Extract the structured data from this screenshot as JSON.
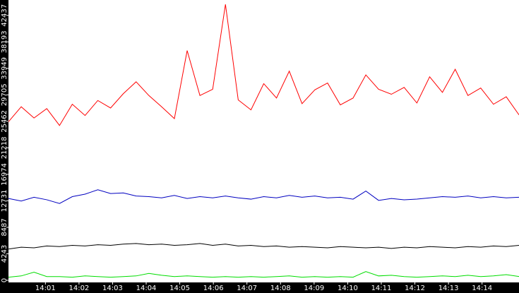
{
  "chart_data": {
    "type": "line",
    "x": [
      -0.1,
      0.28,
      0.66,
      1.04,
      1.42,
      1.8,
      2.18,
      2.56,
      2.94,
      3.32,
      3.7,
      4.08,
      4.46,
      4.84,
      5.22,
      5.6,
      5.98,
      6.36,
      6.74,
      7.12,
      7.5,
      7.88,
      8.26,
      8.64,
      9.02,
      9.4,
      9.78,
      10.16,
      10.54,
      10.92,
      11.3,
      11.68,
      12.06,
      12.44,
      12.82,
      13.2,
      13.58,
      13.96,
      14.34,
      14.72,
      15.1
    ],
    "series": [
      {
        "color": "#ff0000",
        "values": [
          25400,
          27800,
          26000,
          27500,
          24800,
          28200,
          26400,
          28800,
          27600,
          29900,
          31800,
          29600,
          27800,
          25900,
          36800,
          29600,
          30600,
          44200,
          28900,
          27300,
          31500,
          29200,
          33500,
          28300,
          30500,
          31600,
          28100,
          29200,
          32900,
          30600,
          29800,
          30900,
          28400,
          32600,
          30100,
          33800,
          29600,
          30800,
          28200,
          29400,
          26500
        ]
      },
      {
        "color": "#0000c0",
        "values": [
          13100,
          12700,
          13300,
          12900,
          12300,
          13400,
          13800,
          14500,
          13900,
          14000,
          13500,
          13400,
          13200,
          13600,
          13100,
          13400,
          13200,
          13500,
          13200,
          13000,
          13400,
          13200,
          13600,
          13300,
          13500,
          13200,
          13300,
          13000,
          14300,
          12800,
          13100,
          12900,
          13000,
          13200,
          13400,
          13300,
          13500,
          13200,
          13400,
          13200,
          13300
        ]
      },
      {
        "color": "#000000",
        "values": [
          5000,
          5300,
          5200,
          5500,
          5400,
          5600,
          5500,
          5700,
          5600,
          5800,
          5900,
          5700,
          5800,
          5600,
          5700,
          5900,
          5600,
          5800,
          5500,
          5600,
          5400,
          5500,
          5300,
          5400,
          5300,
          5200,
          5400,
          5300,
          5200,
          5300,
          5100,
          5300,
          5200,
          5400,
          5300,
          5200,
          5400,
          5300,
          5500,
          5400,
          5600
        ]
      },
      {
        "color": "#00dd00",
        "values": [
          500,
          700,
          1300,
          600,
          600,
          500,
          700,
          600,
          500,
          600,
          700,
          1100,
          800,
          600,
          700,
          600,
          500,
          600,
          500,
          600,
          500,
          600,
          700,
          500,
          600,
          500,
          600,
          500,
          1400,
          700,
          800,
          600,
          500,
          600,
          700,
          600,
          800,
          600,
          700,
          900,
          600
        ]
      }
    ],
    "xlim": [
      -0.1,
      15.1
    ],
    "xticks": [
      {
        "value": 1,
        "label": "14:01"
      },
      {
        "value": 2,
        "label": "14:02"
      },
      {
        "value": 3,
        "label": "14:03"
      },
      {
        "value": 4,
        "label": "14:04"
      },
      {
        "value": 5,
        "label": "14:05"
      },
      {
        "value": 6,
        "label": "14:06"
      },
      {
        "value": 7,
        "label": "14:07"
      },
      {
        "value": 8,
        "label": "14:08"
      },
      {
        "value": 9,
        "label": "14:09"
      },
      {
        "value": 10,
        "label": "14:10"
      },
      {
        "value": 11,
        "label": "14:11"
      },
      {
        "value": 12,
        "label": "14:12"
      },
      {
        "value": 13,
        "label": "14:13"
      },
      {
        "value": 14,
        "label": "14:14"
      }
    ],
    "ylim": [
      0,
      44900
    ],
    "yticks": [
      0,
      4243,
      8487,
      12731,
      16974,
      21218,
      25462,
      29705,
      33949,
      38193,
      42437
    ]
  }
}
